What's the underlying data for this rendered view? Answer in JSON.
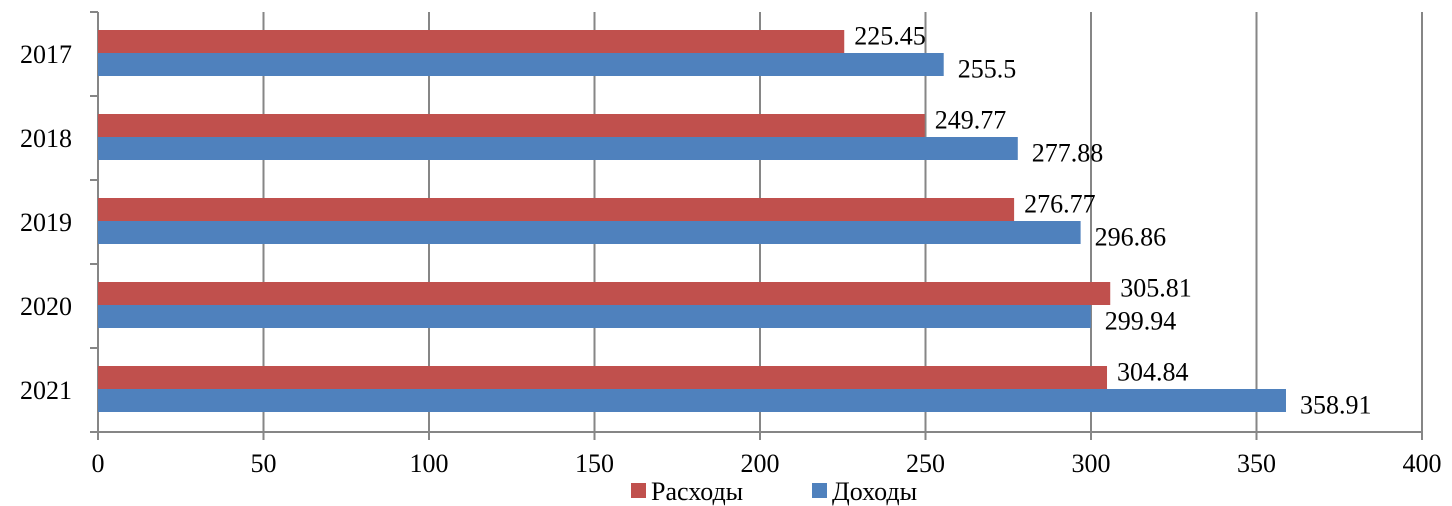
{
  "chart_data": {
    "type": "bar",
    "orientation": "horizontal",
    "categories": [
      "2017",
      "2018",
      "2019",
      "2020",
      "2021"
    ],
    "series": [
      {
        "name": "Расходы",
        "color": "#c0504d",
        "values": [
          225.45,
          249.77,
          276.77,
          305.81,
          304.84
        ]
      },
      {
        "name": "Доходы",
        "color": "#4f81bd",
        "values": [
          255.5,
          277.88,
          296.86,
          299.94,
          358.91
        ]
      }
    ],
    "data_labels": [
      [
        "225.45",
        "249.77",
        "276.77",
        "305.81",
        "304.84"
      ],
      [
        "255.5",
        "277.88",
        "296.86",
        "299.94",
        "358.91"
      ]
    ],
    "x_ticks": [
      "0",
      "50",
      "100",
      "150",
      "200",
      "250",
      "300",
      "350",
      "400"
    ],
    "xlim": [
      0,
      400
    ],
    "grid": true,
    "legend_position": "bottom",
    "title": "",
    "xlabel": "",
    "ylabel": ""
  }
}
